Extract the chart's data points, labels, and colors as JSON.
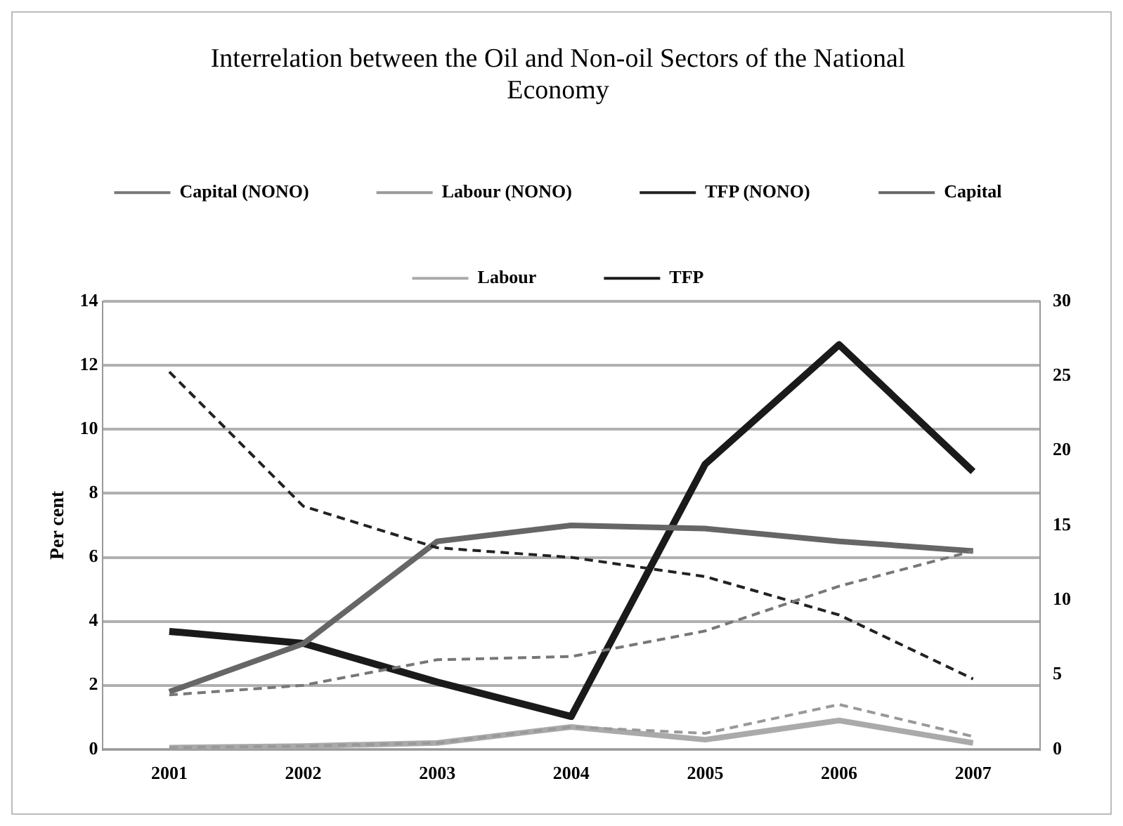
{
  "chart_data": {
    "type": "line",
    "title": "Interrelation between the Oil and Non-oil Sectors of the National Economy",
    "ylabel": "Per cent",
    "categories": [
      "2001",
      "2002",
      "2003",
      "2004",
      "2005",
      "2006",
      "2007"
    ],
    "series": [
      {
        "name": "Capital (NONO)",
        "color": "#777777",
        "line_style": "dashed",
        "values": [
          1.7,
          2.0,
          2.8,
          2.9,
          3.7,
          5.1,
          6.2
        ]
      },
      {
        "name": "Labour (NONO)",
        "color": "#999999",
        "line_style": "dashed",
        "values": [
          0.05,
          0.1,
          0.2,
          0.7,
          0.5,
          1.4,
          0.4
        ]
      },
      {
        "name": "TFP (NONO)",
        "color": "#222222",
        "line_style": "dashed",
        "values": [
          11.8,
          7.6,
          6.3,
          6.0,
          5.4,
          4.2,
          2.2
        ]
      },
      {
        "name": "Capital",
        "color": "#666666",
        "line_style": "solid",
        "values": [
          1.8,
          3.3,
          6.5,
          7.0,
          6.9,
          6.5,
          6.2
        ]
      },
      {
        "name": "Labour",
        "color": "#aaaaaa",
        "line_style": "solid",
        "values": [
          0.05,
          0.1,
          0.2,
          0.7,
          0.3,
          0.9,
          0.2
        ]
      },
      {
        "name": "TFP",
        "color": "#1a1a1a",
        "line_style": "solid",
        "axis": "y2",
        "values": [
          7.9,
          7.1,
          4.5,
          2.2,
          19.1,
          27.1,
          18.6
        ]
      }
    ],
    "ylim": [
      0,
      14
    ],
    "yticks": [
      0,
      2,
      4,
      6,
      8,
      10,
      12,
      14
    ],
    "y2lim": [
      0,
      30
    ],
    "y2ticks": [
      0,
      5,
      10,
      15,
      20,
      25,
      30
    ],
    "grid": "y",
    "legend": "top",
    "marker": "none"
  }
}
